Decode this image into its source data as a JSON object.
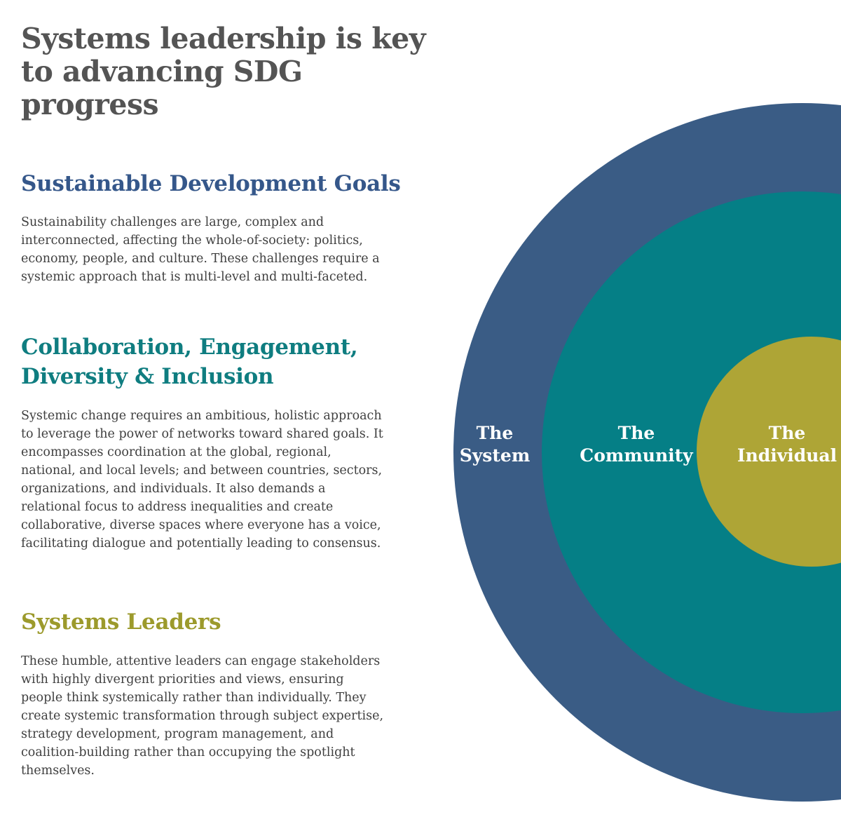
{
  "title": {
    "line1": "Systems leadership is key",
    "line2": "to advancing SDG progress"
  },
  "sections": [
    {
      "heading": "Sustainable Development Goals",
      "body": "Sustainability challenges are large, complex and interconnected, affecting the whole-of-society: politics, economy, people, and culture. These challenges require a systemic approach that is multi-level and multi-faceted."
    },
    {
      "heading": "Collaboration, Engagement, Diversity & Inclusion",
      "body": "Systemic change requires an ambitious, holistic approach to leverage the power of networks toward shared goals. It encompasses coordination at the global, regional, national, and local levels; and between countries, sectors, organizations, and individuals. It also demands a relational focus to address inequalities and create collaborative, diverse spaces where everyone has a voice, facilitating dialogue and potentially leading to consensus."
    },
    {
      "heading": "Systems Leaders",
      "body": "These humble, attentive leaders can engage stakeholders with highly divergent priorities and views, ensuring people think systemically rather than individually. They create systemic transformation through subject expertise, strategy development, program management, and coalition-building rather than occupying the spotlight themselves."
    }
  ],
  "diagram": {
    "rings": [
      {
        "line1": "The",
        "line2": "System",
        "color": "#3a5c85"
      },
      {
        "line1": "The",
        "line2": "Community",
        "color": "#057f86"
      },
      {
        "line1": "The",
        "line2": "Individual",
        "color": "#aea536"
      }
    ]
  },
  "colors": {
    "title": "#545454",
    "sdg_heading": "#35578a",
    "collab_heading": "#0f7d80",
    "leaders_heading": "#9c9a2c",
    "body_text": "#3f3f3f",
    "ring_label": "#ffffff"
  }
}
